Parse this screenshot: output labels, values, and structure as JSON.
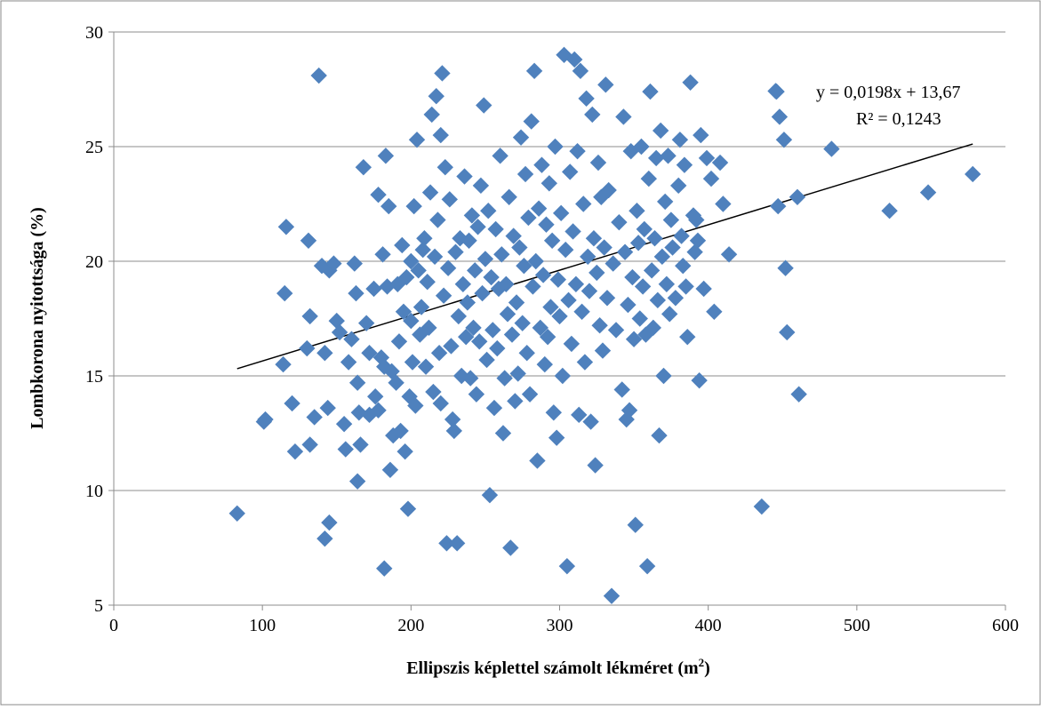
{
  "chart_data": {
    "type": "scatter",
    "xlabel": "Ellipszis képlettel számolt lékméret (m",
    "xlabel_sup": "2",
    "xlabel_suffix": ")",
    "ylabel": "Lombkorona nyitottsága (%)",
    "xlim": [
      0,
      600
    ],
    "ylim": [
      5,
      30
    ],
    "x_ticks": [
      "0",
      "100",
      "200",
      "300",
      "400",
      "500",
      "600"
    ],
    "y_ticks": [
      "5",
      "10",
      "15",
      "20",
      "25",
      "30"
    ],
    "grid": "horizontal",
    "legend_position": "top-right",
    "trendline": {
      "equation": "y = 0,0198x + 13,67",
      "r2": "R² = 0,1243",
      "slope": 0.0198,
      "intercept": 13.67,
      "x_range": [
        83,
        578
      ]
    },
    "marker_color": "#4f81bd",
    "points": [
      [
        83,
        9.0
      ],
      [
        101,
        13.0
      ],
      [
        102,
        13.1
      ],
      [
        116,
        21.5
      ],
      [
        115,
        18.6
      ],
      [
        114,
        15.5
      ],
      [
        120,
        13.8
      ],
      [
        122,
        11.7
      ],
      [
        130,
        16.2
      ],
      [
        131,
        20.9
      ],
      [
        132,
        17.6
      ],
      [
        132,
        12.0
      ],
      [
        135,
        13.2
      ],
      [
        138,
        28.1
      ],
      [
        140,
        19.8
      ],
      [
        142,
        16.0
      ],
      [
        142,
        7.9
      ],
      [
        144,
        13.6
      ],
      [
        145,
        8.6
      ],
      [
        145,
        19.6
      ],
      [
        148,
        19.9
      ],
      [
        150,
        17.4
      ],
      [
        152,
        16.9
      ],
      [
        155,
        12.9
      ],
      [
        156,
        11.8
      ],
      [
        158,
        15.6
      ],
      [
        160,
        16.6
      ],
      [
        162,
        19.9
      ],
      [
        163,
        18.6
      ],
      [
        164,
        14.7
      ],
      [
        164,
        10.4
      ],
      [
        165,
        13.4
      ],
      [
        166,
        12.0
      ],
      [
        168,
        24.1
      ],
      [
        170,
        17.3
      ],
      [
        172,
        16.0
      ],
      [
        172,
        13.3
      ],
      [
        175,
        18.8
      ],
      [
        176,
        14.1
      ],
      [
        178,
        13.5
      ],
      [
        178,
        22.9
      ],
      [
        180,
        15.8
      ],
      [
        181,
        20.3
      ],
      [
        182,
        15.4
      ],
      [
        183,
        24.6
      ],
      [
        184,
        18.9
      ],
      [
        185,
        22.4
      ],
      [
        186,
        10.9
      ],
      [
        187,
        15.2
      ],
      [
        188,
        12.4
      ],
      [
        190,
        14.7
      ],
      [
        191,
        19.0
      ],
      [
        182,
        6.6
      ],
      [
        192,
        16.5
      ],
      [
        193,
        12.6
      ],
      [
        194,
        20.7
      ],
      [
        195,
        17.8
      ],
      [
        196,
        11.7
      ],
      [
        197,
        19.3
      ],
      [
        198,
        9.2
      ],
      [
        199,
        14.1
      ],
      [
        200,
        17.4
      ],
      [
        200,
        20.0
      ],
      [
        201,
        15.6
      ],
      [
        202,
        22.4
      ],
      [
        203,
        13.7
      ],
      [
        204,
        25.3
      ],
      [
        205,
        19.6
      ],
      [
        206,
        16.8
      ],
      [
        207,
        18.0
      ],
      [
        208,
        20.5
      ],
      [
        209,
        21.0
      ],
      [
        210,
        15.4
      ],
      [
        211,
        19.1
      ],
      [
        212,
        17.1
      ],
      [
        213,
        23.0
      ],
      [
        214,
        26.4
      ],
      [
        215,
        14.3
      ],
      [
        216,
        20.2
      ],
      [
        217,
        27.2
      ],
      [
        218,
        21.8
      ],
      [
        219,
        16.0
      ],
      [
        220,
        13.8
      ],
      [
        220,
        25.5
      ],
      [
        221,
        28.2
      ],
      [
        222,
        18.5
      ],
      [
        223,
        24.1
      ],
      [
        224,
        7.7
      ],
      [
        225,
        19.7
      ],
      [
        226,
        22.7
      ],
      [
        227,
        16.3
      ],
      [
        228,
        13.1
      ],
      [
        229,
        12.6
      ],
      [
        230,
        20.4
      ],
      [
        231,
        7.7
      ],
      [
        232,
        17.6
      ],
      [
        233,
        21.0
      ],
      [
        234,
        15.0
      ],
      [
        235,
        19.0
      ],
      [
        236,
        23.7
      ],
      [
        237,
        16.7
      ],
      [
        238,
        18.2
      ],
      [
        239,
        20.9
      ],
      [
        240,
        14.9
      ],
      [
        241,
        22.0
      ],
      [
        242,
        17.1
      ],
      [
        243,
        19.6
      ],
      [
        244,
        14.2
      ],
      [
        245,
        21.5
      ],
      [
        246,
        16.5
      ],
      [
        247,
        23.3
      ],
      [
        248,
        18.6
      ],
      [
        249,
        26.8
      ],
      [
        250,
        20.1
      ],
      [
        251,
        15.7
      ],
      [
        252,
        22.2
      ],
      [
        253,
        9.8
      ],
      [
        254,
        19.3
      ],
      [
        255,
        17.0
      ],
      [
        256,
        13.6
      ],
      [
        257,
        21.4
      ],
      [
        258,
        16.2
      ],
      [
        259,
        18.8
      ],
      [
        260,
        24.6
      ],
      [
        261,
        20.3
      ],
      [
        262,
        12.5
      ],
      [
        263,
        14.9
      ],
      [
        264,
        19.0
      ],
      [
        265,
        17.7
      ],
      [
        266,
        22.8
      ],
      [
        267,
        7.5
      ],
      [
        268,
        16.8
      ],
      [
        269,
        21.1
      ],
      [
        270,
        13.9
      ],
      [
        271,
        18.2
      ],
      [
        272,
        15.1
      ],
      [
        273,
        20.6
      ],
      [
        274,
        25.4
      ],
      [
        275,
        17.3
      ],
      [
        276,
        19.8
      ],
      [
        277,
        23.8
      ],
      [
        278,
        16.0
      ],
      [
        279,
        21.9
      ],
      [
        280,
        14.2
      ],
      [
        281,
        26.1
      ],
      [
        282,
        18.9
      ],
      [
        283,
        28.3
      ],
      [
        284,
        20.0
      ],
      [
        285,
        11.3
      ],
      [
        286,
        22.3
      ],
      [
        287,
        17.1
      ],
      [
        288,
        24.2
      ],
      [
        289,
        19.4
      ],
      [
        290,
        15.5
      ],
      [
        291,
        21.6
      ],
      [
        292,
        16.7
      ],
      [
        293,
        23.4
      ],
      [
        294,
        18.0
      ],
      [
        295,
        20.9
      ],
      [
        296,
        13.4
      ],
      [
        297,
        25.0
      ],
      [
        298,
        12.3
      ],
      [
        299,
        19.2
      ],
      [
        300,
        17.6
      ],
      [
        301,
        22.1
      ],
      [
        302,
        15.0
      ],
      [
        303,
        29.0
      ],
      [
        304,
        20.5
      ],
      [
        305,
        6.7
      ],
      [
        306,
        18.3
      ],
      [
        307,
        23.9
      ],
      [
        308,
        16.4
      ],
      [
        309,
        21.3
      ],
      [
        310,
        28.8
      ],
      [
        311,
        19.0
      ],
      [
        312,
        24.8
      ],
      [
        313,
        13.3
      ],
      [
        314,
        28.3
      ],
      [
        315,
        17.8
      ],
      [
        316,
        22.5
      ],
      [
        317,
        15.6
      ],
      [
        318,
        27.1
      ],
      [
        319,
        20.2
      ],
      [
        320,
        18.7
      ],
      [
        321,
        13.0
      ],
      [
        322,
        26.4
      ],
      [
        323,
        21.0
      ],
      [
        324,
        11.1
      ],
      [
        325,
        19.5
      ],
      [
        326,
        24.3
      ],
      [
        327,
        17.2
      ],
      [
        328,
        22.8
      ],
      [
        329,
        16.1
      ],
      [
        330,
        20.6
      ],
      [
        331,
        27.7
      ],
      [
        332,
        18.4
      ],
      [
        333,
        23.1
      ],
      [
        335,
        5.4
      ],
      [
        336,
        19.9
      ],
      [
        338,
        17.0
      ],
      [
        340,
        21.7
      ],
      [
        342,
        14.4
      ],
      [
        343,
        26.3
      ],
      [
        344,
        20.4
      ],
      [
        345,
        13.1
      ],
      [
        346,
        18.1
      ],
      [
        347,
        13.5
      ],
      [
        348,
        24.8
      ],
      [
        349,
        19.3
      ],
      [
        350,
        16.6
      ],
      [
        351,
        8.5
      ],
      [
        352,
        22.2
      ],
      [
        353,
        20.8
      ],
      [
        354,
        17.5
      ],
      [
        355,
        25.0
      ],
      [
        356,
        18.9
      ],
      [
        357,
        21.4
      ],
      [
        358,
        16.8
      ],
      [
        359,
        6.7
      ],
      [
        360,
        23.6
      ],
      [
        361,
        27.4
      ],
      [
        362,
        19.6
      ],
      [
        363,
        17.1
      ],
      [
        364,
        21.0
      ],
      [
        365,
        24.5
      ],
      [
        366,
        18.3
      ],
      [
        367,
        12.4
      ],
      [
        368,
        25.7
      ],
      [
        369,
        20.2
      ],
      [
        370,
        15.0
      ],
      [
        371,
        22.6
      ],
      [
        372,
        19.0
      ],
      [
        373,
        24.6
      ],
      [
        374,
        17.7
      ],
      [
        375,
        21.8
      ],
      [
        376,
        20.6
      ],
      [
        378,
        18.4
      ],
      [
        380,
        23.3
      ],
      [
        381,
        25.3
      ],
      [
        382,
        21.1
      ],
      [
        383,
        19.8
      ],
      [
        384,
        24.2
      ],
      [
        385,
        18.9
      ],
      [
        386,
        16.7
      ],
      [
        388,
        27.8
      ],
      [
        390,
        22.0
      ],
      [
        391,
        20.4
      ],
      [
        392,
        21.8
      ],
      [
        393,
        20.9
      ],
      [
        394,
        14.8
      ],
      [
        395,
        25.5
      ],
      [
        397,
        18.8
      ],
      [
        399,
        24.5
      ],
      [
        402,
        23.6
      ],
      [
        404,
        17.8
      ],
      [
        408,
        24.3
      ],
      [
        410,
        22.5
      ],
      [
        414,
        20.3
      ],
      [
        436,
        9.3
      ],
      [
        446,
        27.4
      ],
      [
        447,
        22.4
      ],
      [
        448,
        26.3
      ],
      [
        451,
        25.3
      ],
      [
        452,
        19.7
      ],
      [
        453,
        16.9
      ],
      [
        460,
        22.8
      ],
      [
        461,
        14.2
      ],
      [
        483,
        24.9
      ],
      [
        522,
        22.2
      ],
      [
        548,
        23.0
      ],
      [
        578,
        23.8
      ]
    ]
  }
}
